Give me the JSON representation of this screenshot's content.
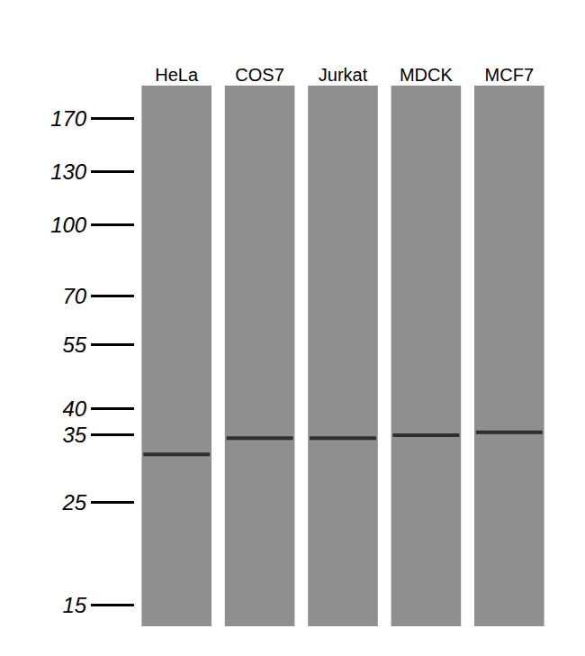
{
  "chart_data": {
    "type": "blot",
    "categories": [
      "HeLa",
      "COS7",
      "Jurkat",
      "MDCK",
      "MCF7"
    ],
    "values": [
      31.8,
      34.5,
      34.5,
      35,
      35.5
    ],
    "color": "#2e2e2e",
    "log": "y",
    "ylim": [
      13.5,
      200
    ],
    "yticks": [
      15,
      25,
      35,
      40,
      55,
      70,
      100,
      130,
      170
    ]
  }
}
